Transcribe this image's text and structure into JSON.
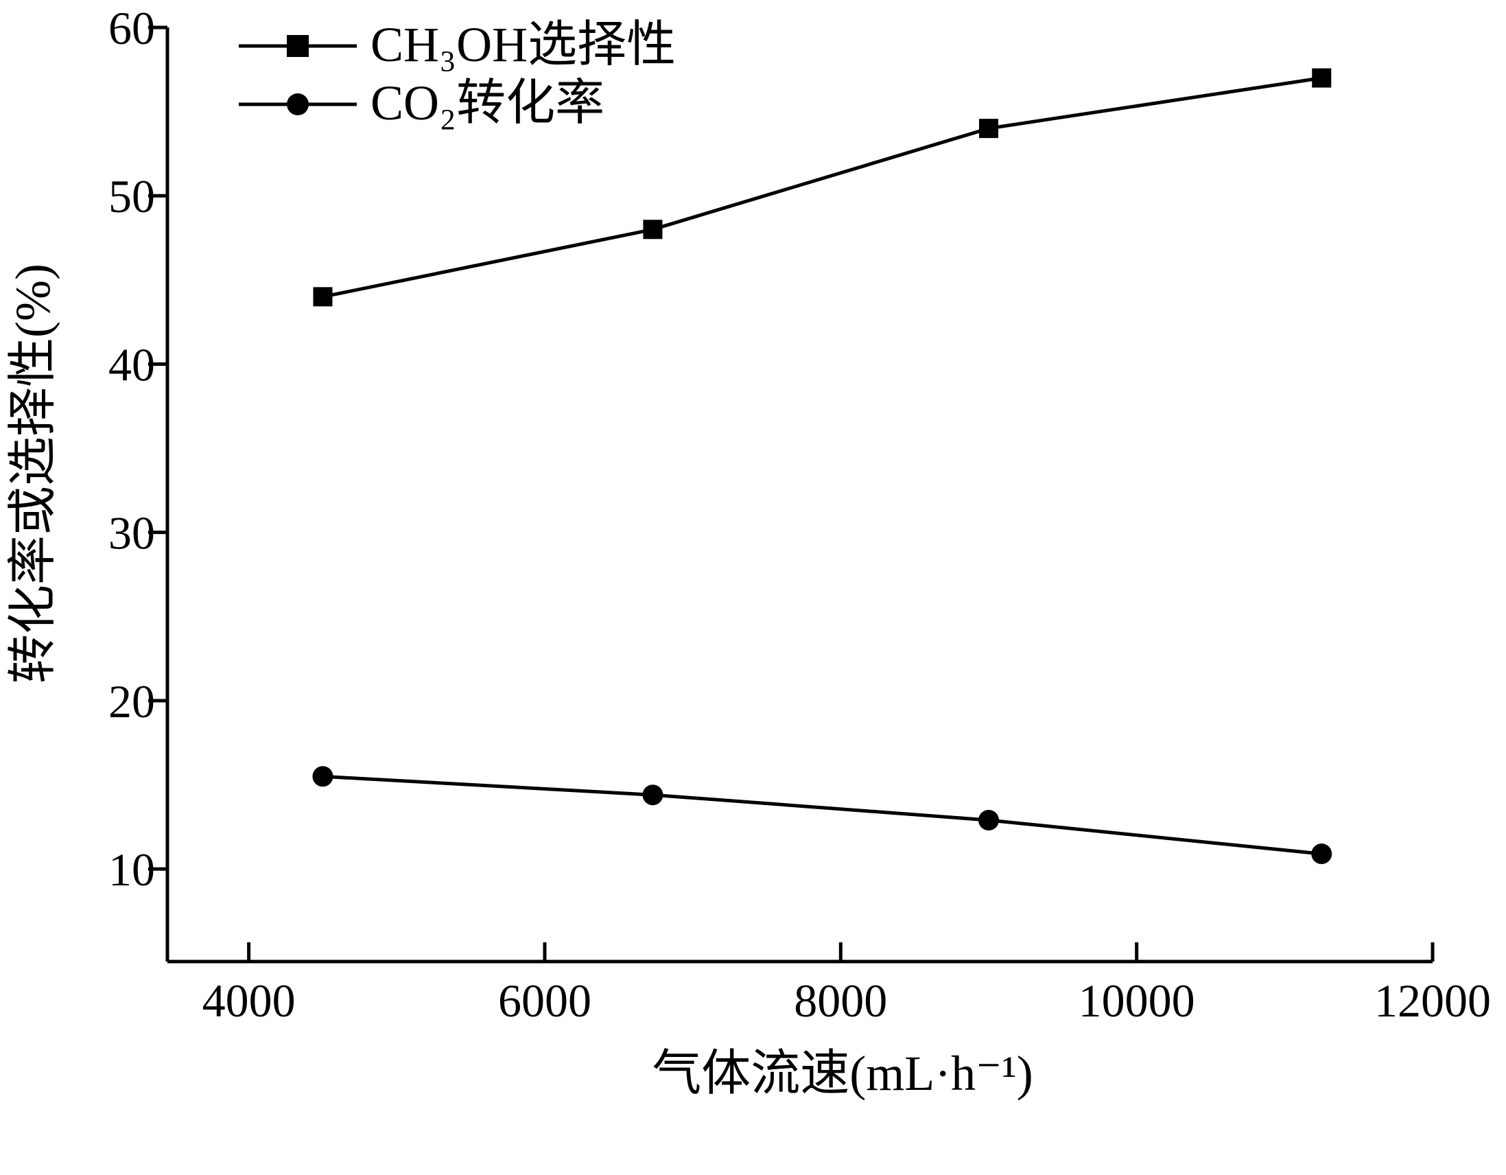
{
  "chart_data": {
    "type": "line",
    "title": "",
    "xlabel": "气体流速(mL·h⁻¹)",
    "ylabel": "转化率或选择性(%)",
    "xlim": [
      3450,
      12000
    ],
    "ylim": [
      4.5,
      60
    ],
    "xticks": [
      4000,
      6000,
      8000,
      10000,
      12000
    ],
    "yticks": [
      10,
      20,
      30,
      40,
      50,
      60
    ],
    "x": [
      4500,
      6730,
      9000,
      11250
    ],
    "series": [
      {
        "name": "CH₃OH选择性",
        "marker": "square",
        "values": [
          44,
          48,
          54,
          57
        ]
      },
      {
        "name": "CO₂转化率",
        "marker": "circle",
        "values": [
          15.5,
          14.4,
          12.9,
          10.9
        ]
      }
    ],
    "legend_position": "top-left",
    "grid": false,
    "line_color": "#000000"
  }
}
